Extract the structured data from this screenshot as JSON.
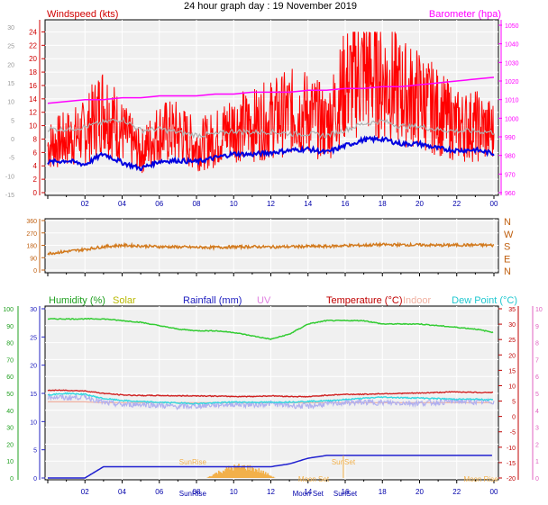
{
  "title": "24 hour graph day : 19 November 2019",
  "colors": {
    "wind": "#ff0000",
    "gust_avg": "#b0b0b0",
    "wind_avg": "#0000e0",
    "barometer": "#ff00ff",
    "direction": "#d27a1e",
    "humidity": "#33cc33",
    "solar": "#c8c800",
    "rainfall": "#2020d0",
    "uv": "#e080e0",
    "temperature": "#d02020",
    "indoor": "#f0b0a0",
    "dewpoint": "#30d8e0",
    "lavender": "#b0b0f0",
    "axis_blue": "#0000aa"
  },
  "x_ticks": [
    "02",
    "04",
    "06",
    "08",
    "10",
    "12",
    "14",
    "16",
    "18",
    "20",
    "22",
    "00"
  ],
  "chart_data": [
    {
      "type": "line",
      "panel": "wind-barometer",
      "left_label": "Windspeed (kts)",
      "right_label": "Barometer (hpa)",
      "left_axis_ticks": [
        "0",
        "2",
        "4",
        "6",
        "8",
        "10",
        "12",
        "14",
        "16",
        "18",
        "20",
        "22",
        "24"
      ],
      "left_inner_ticks": [
        "-15",
        "-10",
        "-5",
        "0",
        "5",
        "10",
        "15",
        "20",
        "25",
        "30"
      ],
      "right_axis_ticks": [
        "960",
        "970",
        "980",
        "990",
        "1000",
        "1010",
        "1020",
        "1030",
        "1040",
        "1050"
      ],
      "ylim_left": [
        0,
        25
      ],
      "ylim_right": [
        960,
        1050
      ],
      "x_hours": [
        0,
        1,
        2,
        3,
        4,
        5,
        6,
        7,
        8,
        9,
        10,
        11,
        12,
        13,
        14,
        15,
        16,
        17,
        18,
        19,
        20,
        21,
        22,
        23,
        24
      ],
      "series": [
        {
          "key": "barometer",
          "values": [
            1008,
            1009,
            1010,
            1010,
            1011,
            1011,
            1012,
            1012,
            1012,
            1013,
            1013,
            1014,
            1014,
            1014,
            1015,
            1015,
            1016,
            1016,
            1017,
            1017,
            1018,
            1019,
            1020,
            1021,
            1022
          ]
        },
        {
          "key": "gust_avg",
          "values": [
            9.5,
            9.5,
            9.8,
            10.5,
            11,
            9.3,
            9.5,
            9.0,
            8.6,
            8.7,
            9.2,
            9.0,
            9.1,
            8.8,
            8.8,
            8.5,
            9.4,
            10.3,
            10.7,
            9.9,
            9.9,
            9.4,
            9.2,
            9.2,
            9.0
          ]
        },
        {
          "key": "wind_avg",
          "values": [
            4.5,
            4.8,
            4.2,
            5.8,
            4.5,
            3.6,
            4.7,
            4.8,
            4.6,
            5.2,
            5.8,
            5.7,
            6.0,
            6.3,
            6.5,
            6.0,
            7.0,
            7.9,
            8.0,
            7.3,
            7.3,
            6.6,
            6.3,
            6.4,
            5.8
          ]
        },
        {
          "key": "wind",
          "values": [
            7,
            8,
            9,
            13,
            9,
            6,
            9,
            9,
            7,
            8,
            10,
            10,
            11,
            12,
            12,
            10,
            16,
            18,
            17,
            15,
            14,
            12,
            10,
            10,
            9
          ]
        }
      ]
    },
    {
      "type": "line",
      "panel": "wind-direction",
      "left_axis_ticks": [
        "0",
        "90",
        "180",
        "270",
        "360"
      ],
      "right_axis_ticks": [
        "N",
        "W",
        "S",
        "E",
        "N"
      ],
      "ylim": [
        0,
        360
      ],
      "x_hours": [
        0,
        1,
        2,
        3,
        4,
        5,
        6,
        7,
        8,
        9,
        10,
        11,
        12,
        13,
        14,
        15,
        16,
        17,
        18,
        19,
        20,
        21,
        22,
        23,
        24
      ],
      "values": [
        120,
        135,
        150,
        170,
        180,
        175,
        170,
        168,
        165,
        165,
        168,
        170,
        168,
        170,
        172,
        172,
        178,
        180,
        185,
        183,
        183,
        180,
        182,
        182,
        180
      ]
    },
    {
      "type": "line",
      "panel": "temperature-humidity",
      "labels": {
        "humidity": "Humidity (%)",
        "solar": "Solar",
        "rainfall": "Rainfall (mm)",
        "uv": "UV",
        "temperature": "Temperature (°C)",
        "indoor": "Indoor",
        "dewpoint": "Dew Point (°C)"
      },
      "left_axis_ticks": [
        "0",
        "10",
        "20",
        "30",
        "40",
        "50",
        "60",
        "70",
        "80",
        "90",
        "100"
      ],
      "left_inner_ticks": [
        "0",
        "5",
        "10",
        "15",
        "20",
        "25",
        "30"
      ],
      "right_inner_ticks": [
        "-20",
        "-15",
        "-10",
        "-5",
        "0",
        "5",
        "10",
        "15",
        "20",
        "25",
        "30",
        "35"
      ],
      "right_axis_ticks": [
        "0",
        "1",
        "2",
        "3",
        "4",
        "5",
        "6",
        "7",
        "8",
        "9",
        "10"
      ],
      "ylim_humidity": [
        0,
        100
      ],
      "ylim_temp": [
        -20,
        35
      ],
      "ylim_rain": [
        0,
        30
      ],
      "x_hours": [
        0,
        1,
        2,
        3,
        4,
        5,
        6,
        7,
        8,
        9,
        10,
        11,
        12,
        13,
        14,
        15,
        16,
        17,
        18,
        19,
        20,
        21,
        22,
        23,
        24
      ],
      "series": [
        {
          "key": "humidity",
          "values": [
            94,
            94,
            94,
            94,
            93,
            92,
            90,
            88,
            87,
            87,
            86,
            84,
            82,
            85,
            91,
            93,
            93,
            93,
            91,
            91,
            91,
            90,
            89,
            88,
            86
          ]
        },
        {
          "key": "indoor",
          "values": [
            45,
            45,
            45,
            44.5,
            44.5,
            44.5,
            44.5,
            44.5,
            44.5,
            44.5,
            44.5,
            44.5,
            44.5,
            44.5,
            44.5,
            44.5,
            44.5,
            44.5,
            44.5,
            44.5,
            44.5,
            44.5,
            44.5,
            44.5,
            44.5
          ]
        },
        {
          "key": "temperature",
          "values": [
            8.5,
            8.5,
            8.3,
            7.5,
            7.0,
            6.8,
            6.8,
            6.7,
            6.7,
            6.6,
            6.5,
            6.5,
            6.7,
            6.5,
            6.4,
            6.9,
            7.2,
            7.2,
            7.4,
            7.5,
            7.6,
            7.8,
            8.0,
            7.8,
            7.8
          ]
        },
        {
          "key": "dewpoint",
          "values": [
            7.0,
            7.5,
            7.2,
            5.8,
            5.2,
            4.8,
            4.6,
            4.4,
            4.2,
            4.4,
            4.7,
            4.6,
            4.6,
            4.7,
            4.9,
            5.1,
            5.5,
            5.9,
            6.3,
            6.1,
            6.0,
            5.8,
            5.6,
            5.6,
            5.4
          ]
        },
        {
          "key": "lavender",
          "values": [
            6.5,
            6.0,
            6.5,
            4.5,
            3.8,
            4.0,
            3.6,
            3.2,
            3.4,
            3.8,
            4.0,
            3.8,
            4.2,
            3.6,
            3.3,
            4.1,
            4.5,
            4.6,
            4.5,
            4.4,
            4.3,
            4.6,
            5.0,
            4.7,
            4.8
          ]
        },
        {
          "key": "rainfall",
          "values": [
            0,
            0,
            0,
            2,
            2,
            2,
            2,
            2,
            2,
            2,
            2,
            2,
            2,
            2.5,
            3.5,
            4,
            4,
            4,
            4,
            4,
            4,
            4,
            4,
            4,
            4
          ]
        }
      ],
      "solar_bars": {
        "x_start": 8.5,
        "x_end": 12.2,
        "peak": 2.2
      },
      "annotations": {
        "sunrise": "SunRise",
        "sunset": "SunSet",
        "moon_set": "Moon Set",
        "moon_rise": "Moon Rise"
      }
    }
  ]
}
